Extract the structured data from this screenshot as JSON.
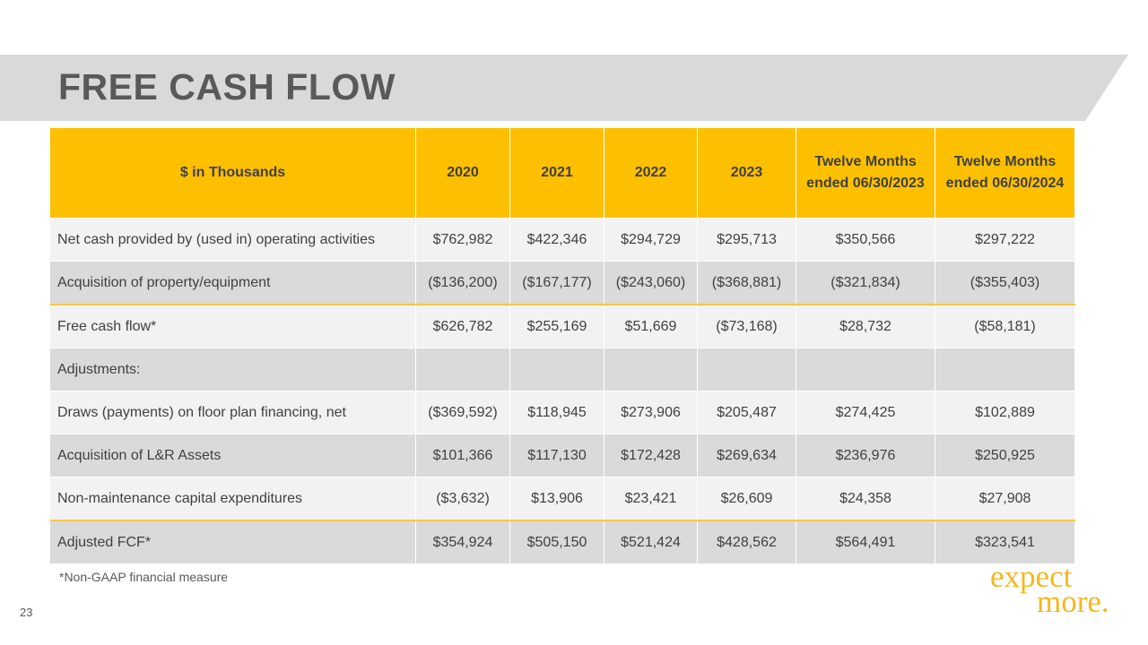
{
  "title": "FREE CASH FLOW",
  "table": {
    "headers": [
      "$ in Thousands",
      "2020",
      "2021",
      "2022",
      "2023",
      "Twelve Months ended 06/30/2023",
      "Twelve Months ended 06/30/2024"
    ],
    "rows": [
      {
        "label": "Net cash provided by (used in) operating activities",
        "values": [
          "$762,982",
          "$422,346",
          "$294,729",
          "$295,713",
          "$350,566",
          "$297,222"
        ]
      },
      {
        "label": "Acquisition of property/equipment",
        "values": [
          "($136,200)",
          "($167,177)",
          "($243,060)",
          "($368,881)",
          "($321,834)",
          "($355,403)"
        ]
      },
      {
        "label": "Free cash flow*",
        "values": [
          "$626,782",
          "$255,169",
          "$51,669",
          "($73,168)",
          "$28,732",
          "($58,181)"
        ]
      },
      {
        "label": "Adjustments:",
        "values": [
          "",
          "",
          "",
          "",
          "",
          ""
        ]
      },
      {
        "label": "Draws (payments) on floor plan financing, net",
        "values": [
          "($369,592)",
          "$118,945",
          "$273,906",
          "$205,487",
          "$274,425",
          "$102,889"
        ]
      },
      {
        "label": "Acquisition of L&R Assets",
        "values": [
          "$101,366",
          "$117,130",
          "$172,428",
          "$269,634",
          "$236,976",
          "$250,925"
        ]
      },
      {
        "label": "Non-maintenance capital expenditures",
        "values": [
          "($3,632)",
          "$13,906",
          "$23,421",
          "$26,609",
          "$24,358",
          "$27,908"
        ]
      },
      {
        "label": "Adjusted FCF*",
        "values": [
          "$354,924",
          "$505,150",
          "$521,424",
          "$428,562",
          "$564,491",
          "$323,541"
        ]
      }
    ]
  },
  "footnote": "*Non-GAAP financial measure",
  "page_number": "23",
  "logo": {
    "line1": "expect",
    "line2": "more."
  },
  "colors": {
    "accent": "#fdc000",
    "banner": "#d9d9d9",
    "logo": "#f3b820"
  }
}
